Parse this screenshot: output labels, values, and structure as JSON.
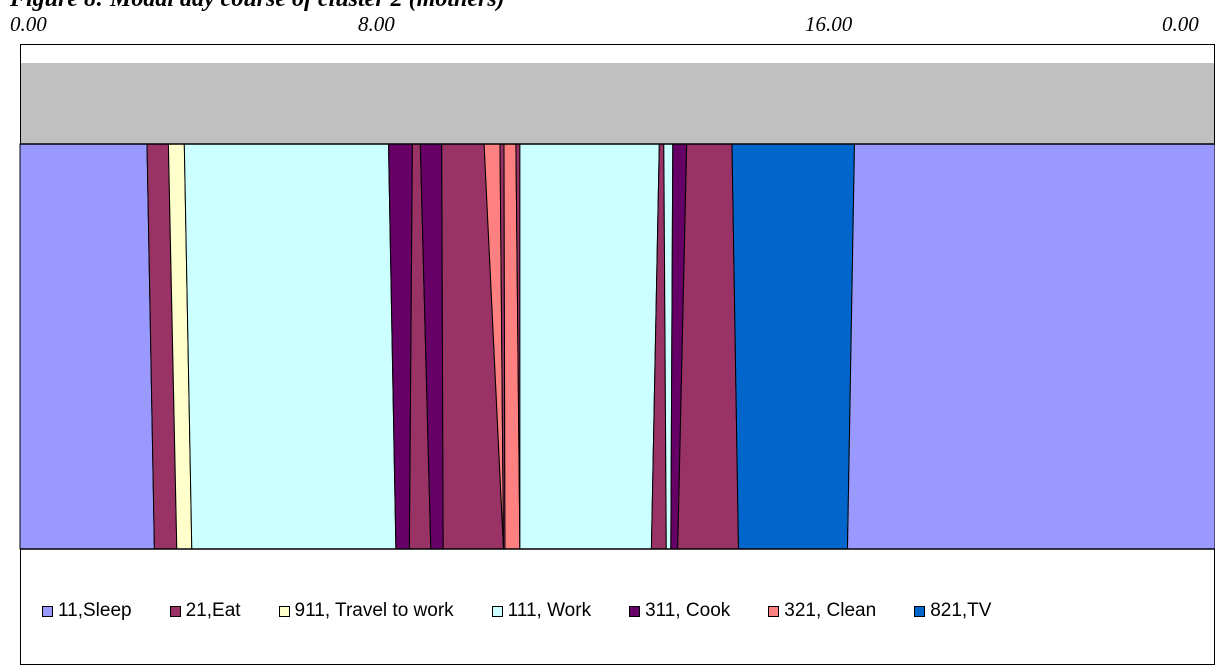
{
  "title": "Figure 8: Modal day course of cluster 2 (mothers)",
  "chart_data": {
    "type": "area",
    "x_range": [
      0,
      24
    ],
    "x_ticks": [
      "0.00",
      "8.00",
      "16.00",
      "0.00"
    ],
    "x_tick_values": [
      0,
      8,
      16,
      24
    ],
    "grid": false,
    "legend_position": "bottom",
    "activities": [
      {
        "code": "11",
        "name": "11,Sleep",
        "color": "#9999ff"
      },
      {
        "code": "21",
        "name": "21,Eat",
        "color": "#993366"
      },
      {
        "code": "911",
        "name": "911, Travel to work",
        "color": "#ffffcc"
      },
      {
        "code": "111",
        "name": "111, Work",
        "color": "#ccffff"
      },
      {
        "code": "311",
        "name": "311, Cook",
        "color": "#660066"
      },
      {
        "code": "321",
        "name": "321, Clean",
        "color": "#ff8080"
      },
      {
        "code": "821",
        "name": "821,TV",
        "color": "#0066cc"
      }
    ],
    "segments": [
      {
        "code": "11",
        "top": [
          0.0,
          2.55
        ],
        "bottom": [
          0.0,
          2.7
        ]
      },
      {
        "code": "21",
        "top": [
          2.55,
          2.98
        ],
        "bottom": [
          2.7,
          3.15
        ]
      },
      {
        "code": "911",
        "top": [
          2.98,
          3.3
        ],
        "bottom": [
          3.15,
          3.45
        ]
      },
      {
        "code": "111",
        "top": [
          3.3,
          7.4
        ],
        "bottom": [
          3.45,
          7.55
        ]
      },
      {
        "code": "311",
        "top": [
          7.4,
          7.88
        ],
        "bottom": [
          7.55,
          7.82
        ]
      },
      {
        "code": "21",
        "top": [
          7.88,
          8.04
        ],
        "bottom": [
          7.82,
          8.25
        ]
      },
      {
        "code": "311",
        "top": [
          8.04,
          8.47
        ],
        "bottom": [
          8.25,
          8.5
        ]
      },
      {
        "code": "21",
        "top": [
          8.47,
          9.32
        ],
        "bottom": [
          8.5,
          9.71
        ]
      },
      {
        "code": "321",
        "top": [
          9.32,
          9.64
        ],
        "bottom": [
          9.71,
          9.71
        ]
      },
      {
        "code": "21",
        "top": [
          9.64,
          9.72
        ],
        "bottom": [
          9.71,
          9.74
        ]
      },
      {
        "code": "321",
        "top": [
          9.72,
          9.96
        ],
        "bottom": [
          9.74,
          10.04
        ]
      },
      {
        "code": "21",
        "top": [
          9.96,
          10.04
        ],
        "bottom": [
          10.04,
          10.04
        ]
      },
      {
        "code": "111",
        "top": [
          10.04,
          12.84
        ],
        "bottom": [
          10.04,
          12.68
        ]
      },
      {
        "code": "21",
        "top": [
          12.84,
          12.93
        ],
        "bottom": [
          12.68,
          12.98
        ]
      },
      {
        "code": "111",
        "top": [
          12.93,
          13.11
        ],
        "bottom": [
          12.98,
          13.07
        ]
      },
      {
        "code": "311",
        "top": [
          13.11,
          13.39
        ],
        "bottom": [
          13.07,
          13.21
        ]
      },
      {
        "code": "21",
        "top": [
          13.39,
          14.3
        ],
        "bottom": [
          13.21,
          14.43
        ]
      },
      {
        "code": "821",
        "top": [
          14.3,
          16.76
        ],
        "bottom": [
          14.43,
          16.62
        ]
      },
      {
        "code": "11",
        "top": [
          16.76,
          24.0
        ],
        "bottom": [
          16.62,
          24.0
        ]
      }
    ]
  }
}
